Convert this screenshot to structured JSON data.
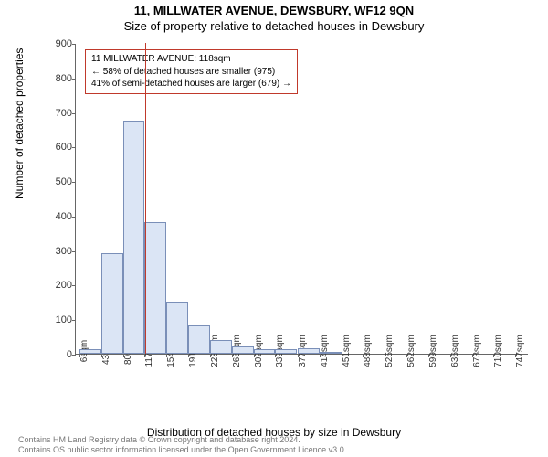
{
  "titles": {
    "address": "11, MILLWATER AVENUE, DEWSBURY, WF12 9QN",
    "subtitle": "Size of property relative to detached houses in Dewsbury"
  },
  "chart": {
    "type": "histogram",
    "ylabel": "Number of detached properties",
    "xlabel": "Distribution of detached houses by size in Dewsbury",
    "ylim": [
      0,
      900
    ],
    "ytick_step": 100,
    "xticks_sqm": [
      6,
      43,
      80,
      117,
      154,
      191,
      228,
      265,
      302,
      339,
      377,
      414,
      451,
      488,
      525,
      562,
      599,
      636,
      673,
      710,
      747
    ],
    "xmin_sqm": 0,
    "xmax_sqm": 770,
    "bin_width_sqm": 37,
    "bars": [
      {
        "start_sqm": 6,
        "value": 12
      },
      {
        "start_sqm": 43,
        "value": 290
      },
      {
        "start_sqm": 80,
        "value": 675
      },
      {
        "start_sqm": 117,
        "value": 380
      },
      {
        "start_sqm": 154,
        "value": 150
      },
      {
        "start_sqm": 191,
        "value": 82
      },
      {
        "start_sqm": 228,
        "value": 40
      },
      {
        "start_sqm": 265,
        "value": 20
      },
      {
        "start_sqm": 302,
        "value": 12
      },
      {
        "start_sqm": 339,
        "value": 12
      },
      {
        "start_sqm": 377,
        "value": 15
      },
      {
        "start_sqm": 414,
        "value": 3
      }
    ],
    "bar_fill": "#dbe5f5",
    "bar_border": "#7a8fb8",
    "marker": {
      "sqm": 118,
      "color": "#c0392b"
    },
    "callout": {
      "line1": "11 MILLWATER AVENUE: 118sqm",
      "line2": "← 58% of detached houses are smaller (975)",
      "line3": "41% of semi-detached houses are larger (679) →",
      "border_color": "#c0392b"
    }
  },
  "footer": {
    "line1": "Contains HM Land Registry data © Crown copyright and database right 2024.",
    "line2": "Contains OS public sector information licensed under the Open Government Licence v3.0."
  }
}
